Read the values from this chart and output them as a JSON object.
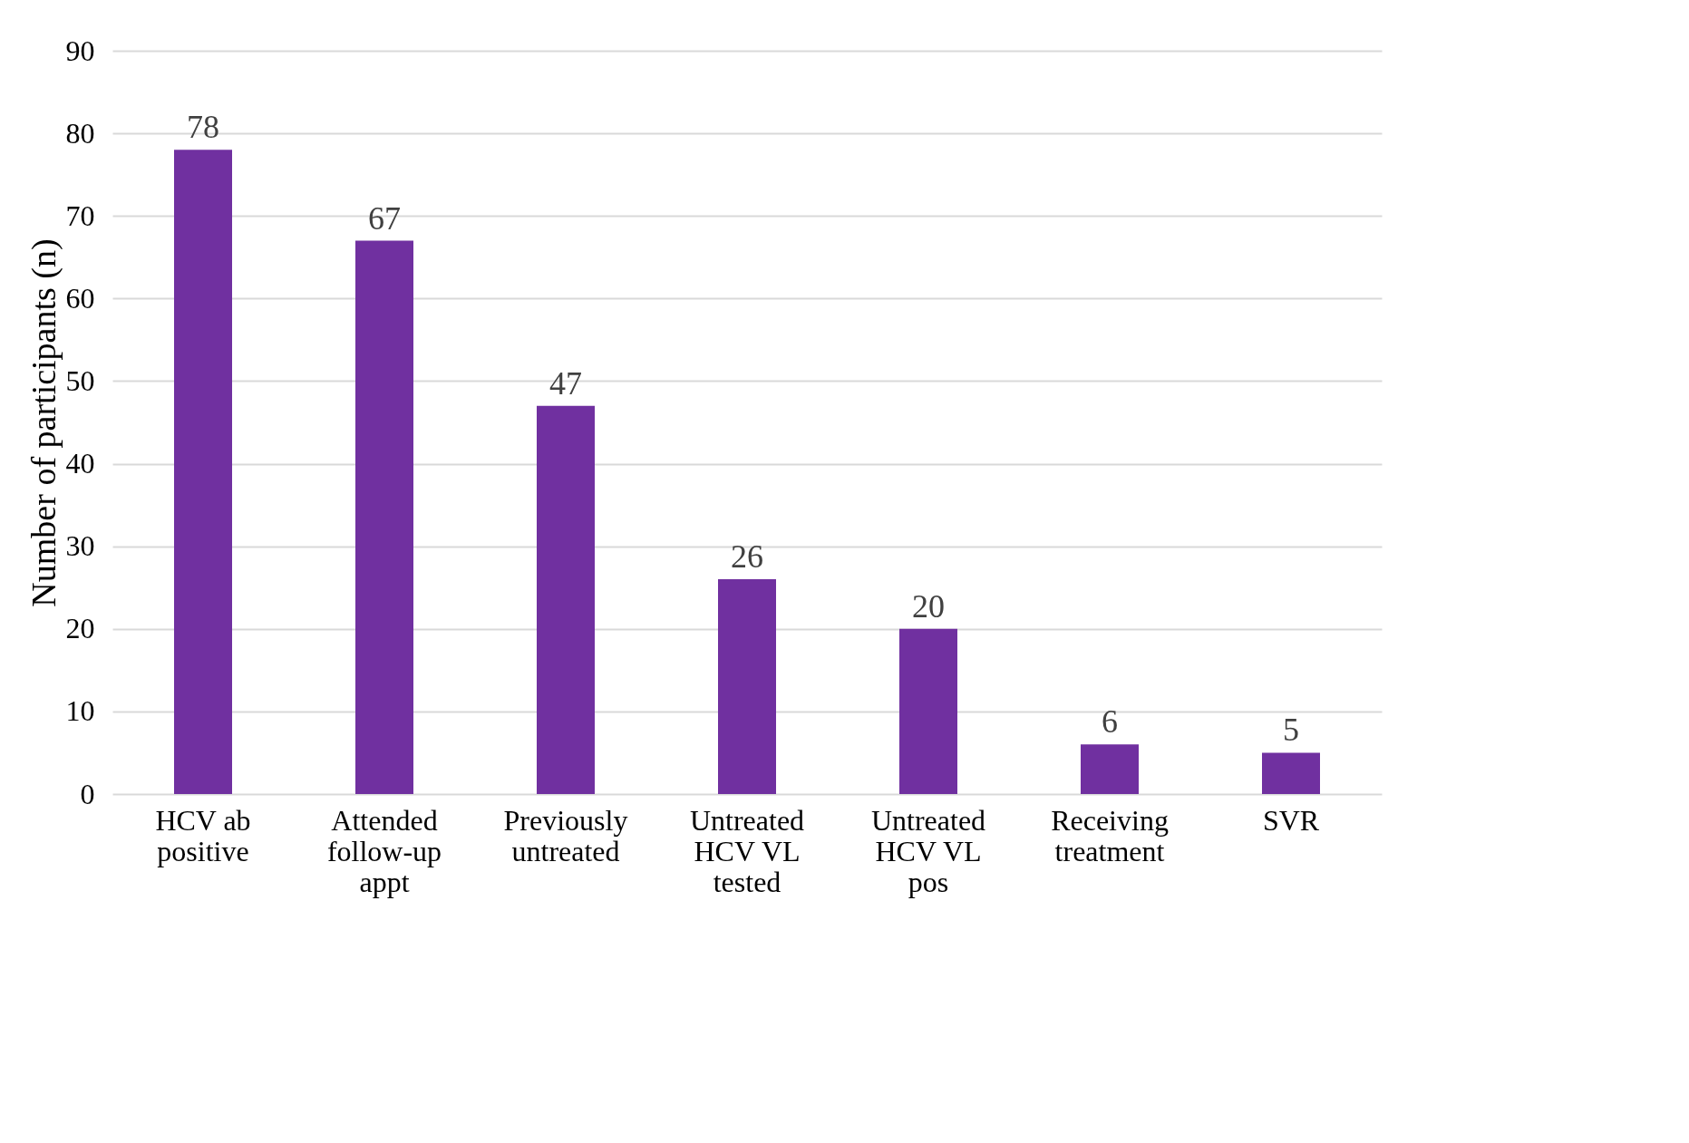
{
  "chart_data": {
    "type": "bar",
    "ylabel": "Number of participants (n)",
    "categories": [
      "HCV ab positive",
      "Attended follow-up appt",
      "Previously untreated",
      "Untreated HCV VL tested",
      "Untreated HCV VL pos",
      "Receiving treatment",
      "SVR"
    ],
    "values": [
      78,
      67,
      47,
      26,
      20,
      6,
      5
    ],
    "color": "#7030a0",
    "ylim": [
      0,
      90
    ],
    "yticks": [
      0,
      10,
      20,
      30,
      40,
      50,
      60,
      70,
      80,
      90
    ],
    "grid": "y",
    "data_labels": true
  }
}
